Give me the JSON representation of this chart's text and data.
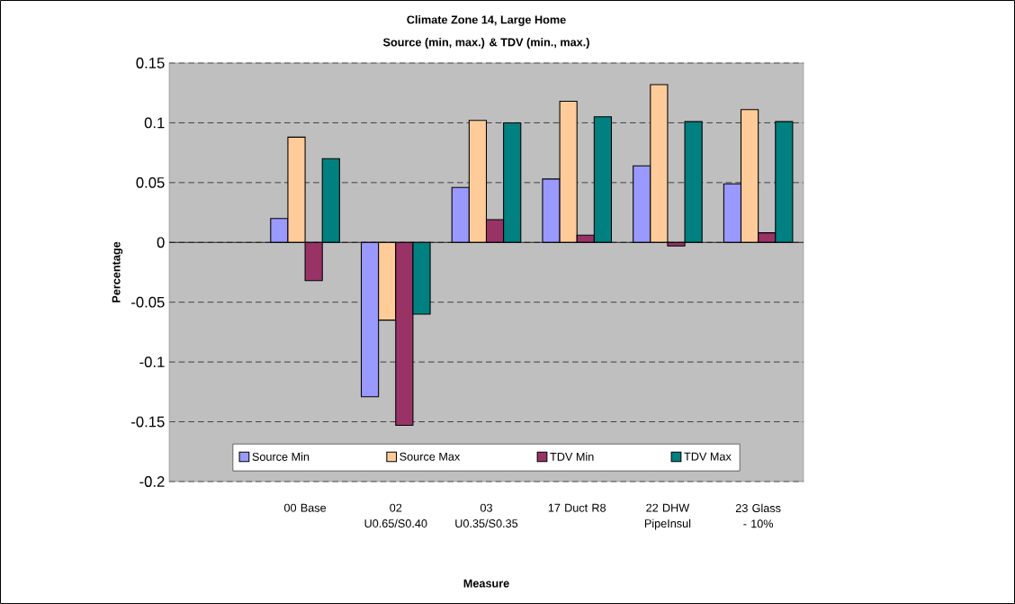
{
  "chart_data": {
    "type": "bar",
    "title": "Climate Zone 14, Large Home",
    "subtitle": "Source (min, max.) & TDV (min., max.)",
    "xlabel": "Measure",
    "ylabel": "Percentage",
    "categories": [
      null,
      "00 Base",
      "02 U0.65/S0.40",
      "03 U0.35/S0.35",
      "17 Duct R8",
      "22 DHW PipeInsul",
      "23 Glass - 10%"
    ],
    "series": [
      {
        "name": "Source Min",
        "color": "#9999ff",
        "values": [
          null,
          0.02,
          -0.129,
          0.046,
          0.053,
          0.064,
          0.049
        ]
      },
      {
        "name": "Source Max",
        "color": "#ffcc99",
        "values": [
          null,
          0.088,
          -0.065,
          0.102,
          0.118,
          0.132,
          0.111
        ]
      },
      {
        "name": "TDV Min",
        "color": "#993366",
        "values": [
          null,
          -0.032,
          -0.153,
          0.019,
          0.006,
          -0.003,
          0.008
        ]
      },
      {
        "name": "TDV Max",
        "color": "#008080",
        "values": [
          null,
          0.07,
          -0.06,
          0.1,
          0.105,
          0.101,
          0.101
        ]
      }
    ],
    "ylim": [
      -0.2,
      0.15
    ],
    "yticks": [
      -0.2,
      -0.15,
      -0.1,
      -0.05,
      0,
      0.05,
      0.1,
      0.15
    ],
    "grid": "y",
    "legend": "bottom"
  }
}
